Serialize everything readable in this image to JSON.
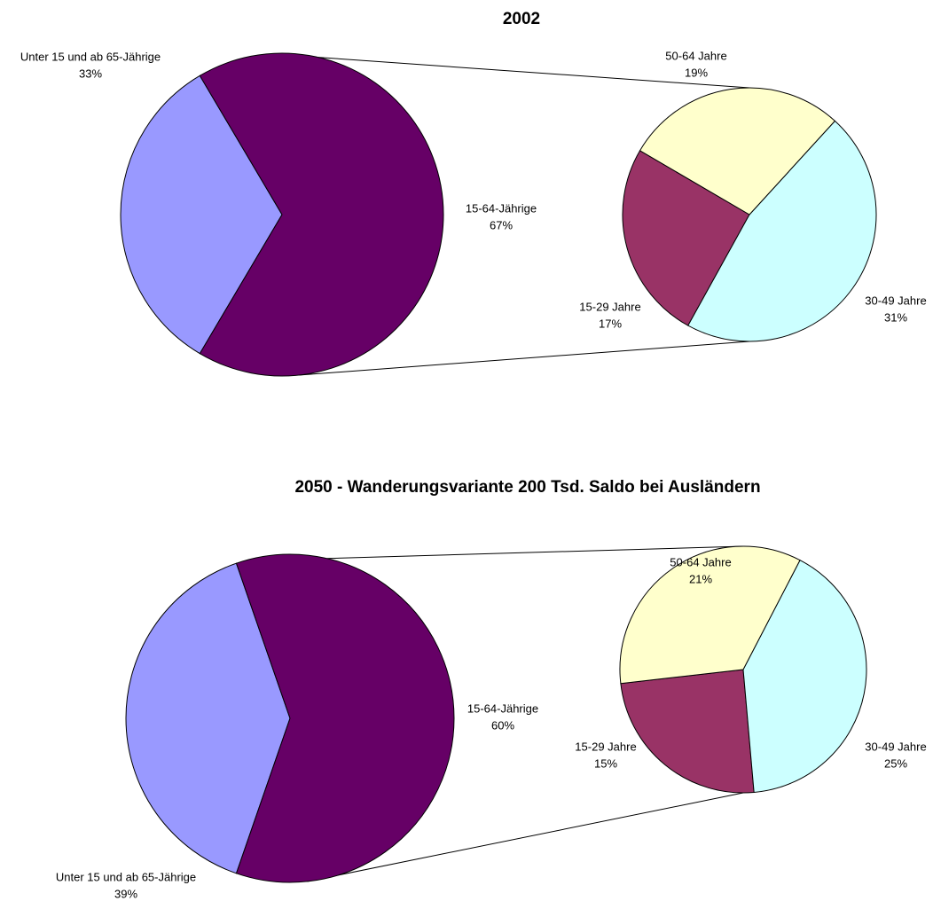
{
  "chart_data": [
    {
      "type": "pie-of-pie",
      "title": "2002",
      "categories": [
        "Unter 15 und ab 65-Jährige",
        "15-64-Jährige"
      ],
      "values": [
        33,
        67
      ],
      "value_labels": [
        "33%",
        "67%"
      ],
      "colors": [
        "#9999ff",
        "#660066"
      ],
      "breakdown": {
        "categories": [
          "15-29 Jahre",
          "30-49 Jahre",
          "50-64 Jahre"
        ],
        "values": [
          17,
          31,
          19
        ],
        "value_labels": [
          "17%",
          "31%",
          "19%"
        ],
        "colors": [
          "#993366",
          "#ccffff",
          "#ffffcc"
        ]
      }
    },
    {
      "type": "pie-of-pie",
      "title": "2050 - Wanderungsvariante 200 Tsd. Saldo bei Ausländern",
      "categories": [
        "Unter 15 und ab 65-Jährige",
        "15-64-Jährige"
      ],
      "values": [
        39,
        60
      ],
      "value_labels": [
        "39%",
        "60%"
      ],
      "colors": [
        "#9999ff",
        "#660066"
      ],
      "breakdown": {
        "categories": [
          "15-29 Jahre",
          "30-49 Jahre",
          "50-64 Jahre"
        ],
        "values": [
          15,
          25,
          21
        ],
        "value_labels": [
          "15%",
          "25%",
          "21%"
        ],
        "colors": [
          "#993366",
          "#ccffff",
          "#ffffcc"
        ]
      }
    }
  ]
}
